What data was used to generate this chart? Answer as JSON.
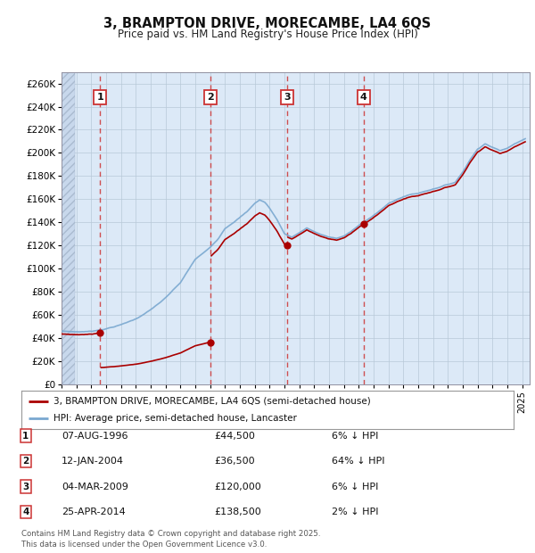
{
  "title": "3, BRAMPTON DRIVE, MORECAMBE, LA4 6QS",
  "subtitle": "Price paid vs. HM Land Registry's House Price Index (HPI)",
  "ylabel_values": [
    "£0",
    "£20K",
    "£40K",
    "£60K",
    "£80K",
    "£100K",
    "£120K",
    "£140K",
    "£160K",
    "£180K",
    "£200K",
    "£220K",
    "£240K",
    "£260K"
  ],
  "yticks": [
    0,
    20000,
    40000,
    60000,
    80000,
    100000,
    120000,
    140000,
    160000,
    180000,
    200000,
    220000,
    240000,
    260000
  ],
  "ymax": 270000,
  "xmin": 1994.0,
  "xmax": 2025.5,
  "plot_bg": "#dce9f7",
  "sale_dates": [
    1996.6,
    2004.04,
    2009.17,
    2014.32
  ],
  "sale_prices": [
    44500,
    36500,
    120000,
    138500
  ],
  "sale_labels": [
    "1",
    "2",
    "3",
    "4"
  ],
  "transactions": [
    {
      "label": "1",
      "date": "07-AUG-1996",
      "price": "£44,500",
      "pct": "6%",
      "dir": "↓"
    },
    {
      "label": "2",
      "date": "12-JAN-2004",
      "price": "£36,500",
      "pct": "64%",
      "dir": "↓"
    },
    {
      "label": "3",
      "date": "04-MAR-2009",
      "price": "£120,000",
      "pct": "6%",
      "dir": "↓"
    },
    {
      "label": "4",
      "date": "25-APR-2014",
      "price": "£138,500",
      "pct": "2%",
      "dir": "↓"
    }
  ],
  "legend_red": "3, BRAMPTON DRIVE, MORECAMBE, LA4 6QS (semi-detached house)",
  "legend_blue": "HPI: Average price, semi-detached house, Lancaster",
  "footer": "Contains HM Land Registry data © Crown copyright and database right 2025.\nThis data is licensed under the Open Government Licence v3.0.",
  "red_color": "#aa0000",
  "blue_color": "#7aa8d0",
  "dashed_red": "#cc3333"
}
